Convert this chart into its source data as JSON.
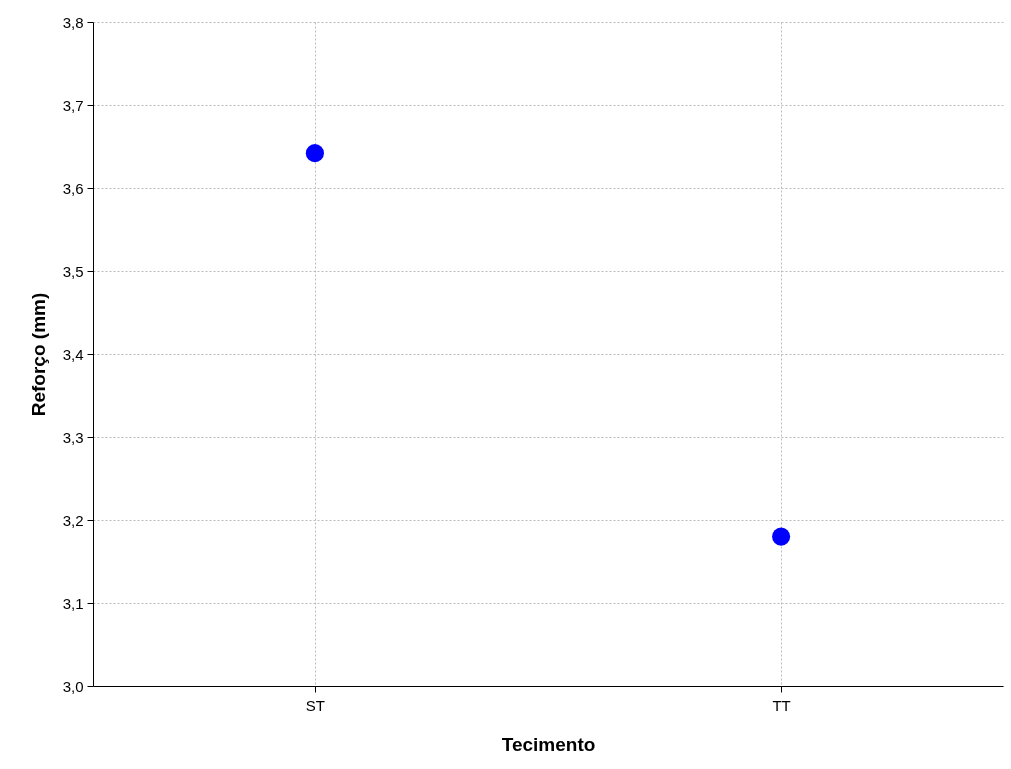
{
  "chart_data": {
    "type": "scatter",
    "xlabel": "Tecimento",
    "ylabel": "Reforço (mm)",
    "categories": [
      "ST",
      "TT"
    ],
    "series": [
      {
        "color": "#0000ff",
        "values": [
          3.642,
          3.18
        ]
      }
    ],
    "ylim": [
      3.0,
      3.8
    ],
    "yticks": [
      {
        "value": 3.0,
        "label": "3,0"
      },
      {
        "value": 3.1,
        "label": "3,1"
      },
      {
        "value": 3.2,
        "label": "3,2"
      },
      {
        "value": 3.3,
        "label": "3,3"
      },
      {
        "value": 3.4,
        "label": "3,4"
      },
      {
        "value": 3.5,
        "label": "3,5"
      },
      {
        "value": 3.6,
        "label": "3,6"
      },
      {
        "value": 3.7,
        "label": "3,7"
      },
      {
        "value": 3.8,
        "label": "3,8"
      }
    ],
    "grid": true,
    "marker": "circle",
    "legend": false
  }
}
